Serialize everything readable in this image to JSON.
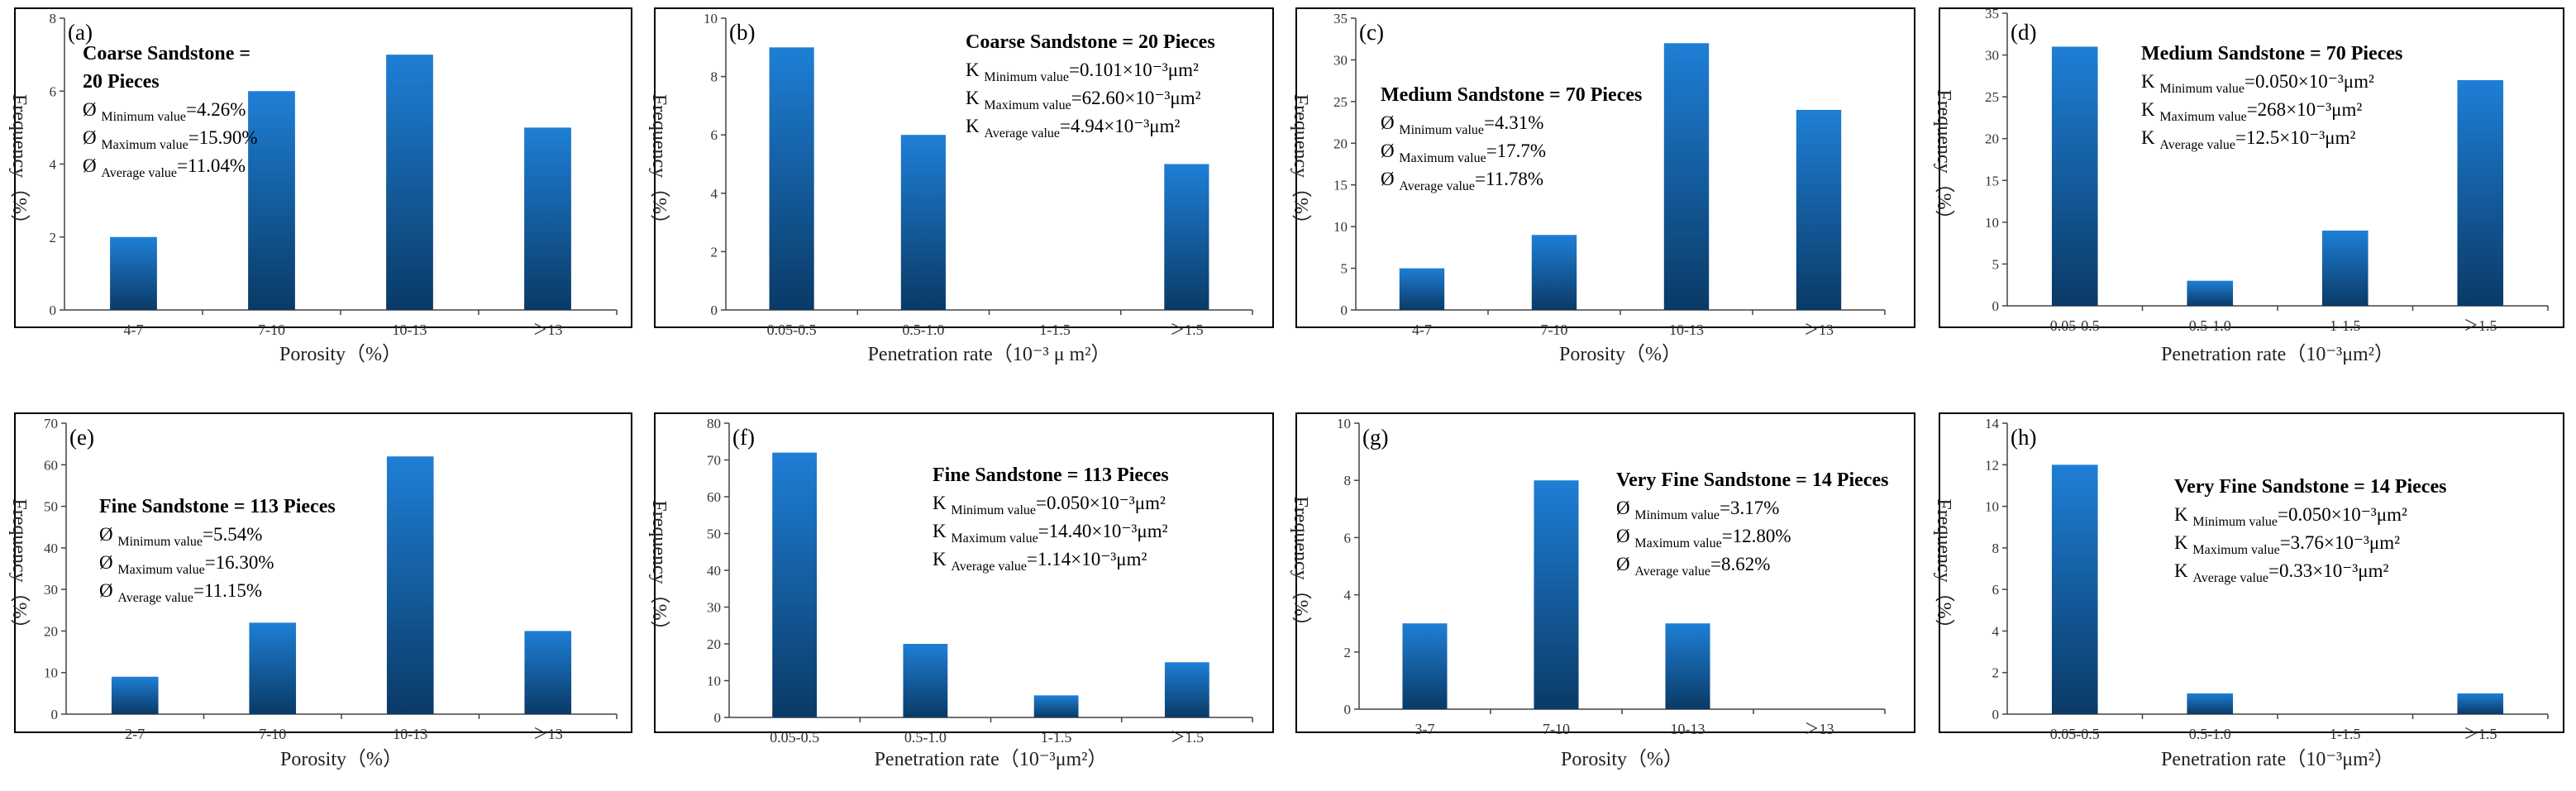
{
  "colors": {
    "bar_top": "#1E7FD6",
    "bar_bottom": "#0A3A66",
    "axis": "#444444",
    "frame": "#000000"
  },
  "chart_data": [
    {
      "type": "bar",
      "label": "(a)",
      "categories": [
        "4-7",
        "7-10",
        "10-13",
        "＞13"
      ],
      "values": [
        2,
        6,
        7,
        5
      ],
      "ylim": [
        0,
        8
      ],
      "yticks": [
        0,
        2,
        4,
        6,
        8
      ],
      "xlabel": "Porosity（%）",
      "ylabel": "Frequency（%）",
      "title": [
        "Coarse Sandstone =",
        "20 Pieces"
      ],
      "stats": [
        {
          "sym": "Ø",
          "sub": "Minimum value",
          "val": "=4.26%"
        },
        {
          "sym": "Ø",
          "sub": "Maximum value",
          "val": "=15.90%"
        },
        {
          "sym": "Ø",
          "sub": "Average value",
          "val": "=11.04%"
        }
      ]
    },
    {
      "type": "bar",
      "label": "(b)",
      "categories": [
        "0.05-0.5",
        "0.5-1.0",
        "1-1.5",
        "＞1.5"
      ],
      "values": [
        9,
        6,
        0,
        5
      ],
      "ylim": [
        0,
        10
      ],
      "yticks": [
        0,
        2,
        4,
        6,
        8,
        10
      ],
      "xlabel": "Penetration rate（10⁻³ μ m²）",
      "ylabel": "Frequency（%）",
      "title": [
        "Coarse Sandstone = 20 Pieces"
      ],
      "stats": [
        {
          "sym": "K",
          "sub": "Minimum value",
          "val": "=0.101×10⁻³μm²"
        },
        {
          "sym": "K",
          "sub": "Maximum value",
          "val": "=62.60×10⁻³μm²"
        },
        {
          "sym": "K",
          "sub": "Average value",
          "val": "=4.94×10⁻³μm²"
        }
      ]
    },
    {
      "type": "bar",
      "label": "(c)",
      "categories": [
        "4-7",
        "7-10",
        "10-13",
        "＞13"
      ],
      "values": [
        5,
        9,
        32,
        24
      ],
      "ylim": [
        0,
        35
      ],
      "yticks": [
        0,
        5,
        10,
        15,
        20,
        25,
        30,
        35
      ],
      "xlabel": "Porosity（%）",
      "ylabel": "Frequency（%）",
      "title": [
        "Medium Sandstone = 70 Pieces"
      ],
      "stats": [
        {
          "sym": "Ø",
          "sub": "Minimum value",
          "val": "=4.31%"
        },
        {
          "sym": "Ø",
          "sub": "Maximum value",
          "val": "=17.7%"
        },
        {
          "sym": "Ø",
          "sub": "Average value",
          "val": "=11.78%"
        }
      ]
    },
    {
      "type": "bar",
      "label": "(d)",
      "categories": [
        "0.05-0.5",
        "0.5-1.0",
        "1-1.5",
        "＞1.5"
      ],
      "values": [
        31,
        3,
        9,
        27
      ],
      "ylim": [
        0,
        35
      ],
      "yticks": [
        0,
        5,
        10,
        15,
        20,
        25,
        30,
        35
      ],
      "xlabel": "Penetration rate（10⁻³μm²）",
      "ylabel": "Frequency（%）",
      "title": [
        "Medium Sandstone = 70 Pieces"
      ],
      "stats": [
        {
          "sym": "K",
          "sub": "Minimum value",
          "val": "=0.050×10⁻³μm²"
        },
        {
          "sym": "K",
          "sub": "Maximum value",
          "val": "=268×10⁻³μm²"
        },
        {
          "sym": "K",
          "sub": "Average value",
          "val": "=12.5×10⁻³μm²"
        }
      ]
    },
    {
      "type": "bar",
      "label": "(e)",
      "categories": [
        "2-7",
        "7-10",
        "10-13",
        "＞13"
      ],
      "values": [
        9,
        22,
        62,
        20
      ],
      "ylim": [
        0,
        70
      ],
      "yticks": [
        0,
        10,
        20,
        30,
        40,
        50,
        60,
        70
      ],
      "xlabel": "Porosity（%）",
      "ylabel": "Frequency（%）",
      "title": [
        "Fine Sandstone = 113 Pieces"
      ],
      "stats": [
        {
          "sym": "Ø",
          "sub": "Minimum value",
          "val": "=5.54%"
        },
        {
          "sym": "Ø",
          "sub": "Maximum value",
          "val": "=16.30%"
        },
        {
          "sym": "Ø",
          "sub": "Average value",
          "val": "=11.15%"
        }
      ]
    },
    {
      "type": "bar",
      "label": "(f)",
      "categories": [
        "0.05-0.5",
        "0.5-1.0",
        "1-1.5",
        "＞1.5"
      ],
      "values": [
        72,
        20,
        6,
        15
      ],
      "ylim": [
        0,
        80
      ],
      "yticks": [
        0,
        10,
        20,
        30,
        40,
        50,
        60,
        70,
        80
      ],
      "xlabel": "Penetration rate（10⁻³μm²）",
      "ylabel": "Frequency（%）",
      "title": [
        "Fine Sandstone = 113 Pieces"
      ],
      "stats": [
        {
          "sym": "K",
          "sub": "Minimum value",
          "val": "=0.050×10⁻³μm²"
        },
        {
          "sym": "K",
          "sub": "Maximum value",
          "val": "=14.40×10⁻³μm²"
        },
        {
          "sym": "K",
          "sub": "Average value",
          "val": "=1.14×10⁻³μm²"
        }
      ]
    },
    {
      "type": "bar",
      "label": "(g)",
      "categories": [
        "3-7",
        "7-10",
        "10-13",
        "＞13"
      ],
      "values": [
        3,
        8,
        3,
        0
      ],
      "ylim": [
        0,
        10
      ],
      "yticks": [
        0,
        2,
        4,
        6,
        8,
        10
      ],
      "xlabel": "Porosity（%）",
      "ylabel": "Frequency（%）",
      "title": [
        "Very Fine Sandstone = 14 Pieces"
      ],
      "stats": [
        {
          "sym": "Ø",
          "sub": "Minimum value",
          "val": "=3.17%"
        },
        {
          "sym": "Ø",
          "sub": "Maximum value",
          "val": "=12.80%"
        },
        {
          "sym": "Ø",
          "sub": "Average value",
          "val": "=8.62%"
        }
      ]
    },
    {
      "type": "bar",
      "label": "(h)",
      "categories": [
        "0.05-0.5",
        "0.5-1.0",
        "1-1.5",
        "＞1.5"
      ],
      "values": [
        12,
        1,
        0,
        1
      ],
      "ylim": [
        0,
        14
      ],
      "yticks": [
        0,
        2,
        4,
        6,
        8,
        10,
        12,
        14
      ],
      "xlabel": "Penetration rate（10⁻³μm²）",
      "ylabel": "Frequency（%）",
      "title": [
        "Very Fine Sandstone = 14 Pieces"
      ],
      "stats": [
        {
          "sym": "K",
          "sub": "Minimum value",
          "val": "=0.050×10⁻³μm²"
        },
        {
          "sym": "K",
          "sub": "Maximum value",
          "val": "=3.76×10⁻³μm²"
        },
        {
          "sym": "K",
          "sub": "Average value",
          "val": "=0.33×10⁻³μm²"
        }
      ]
    }
  ]
}
